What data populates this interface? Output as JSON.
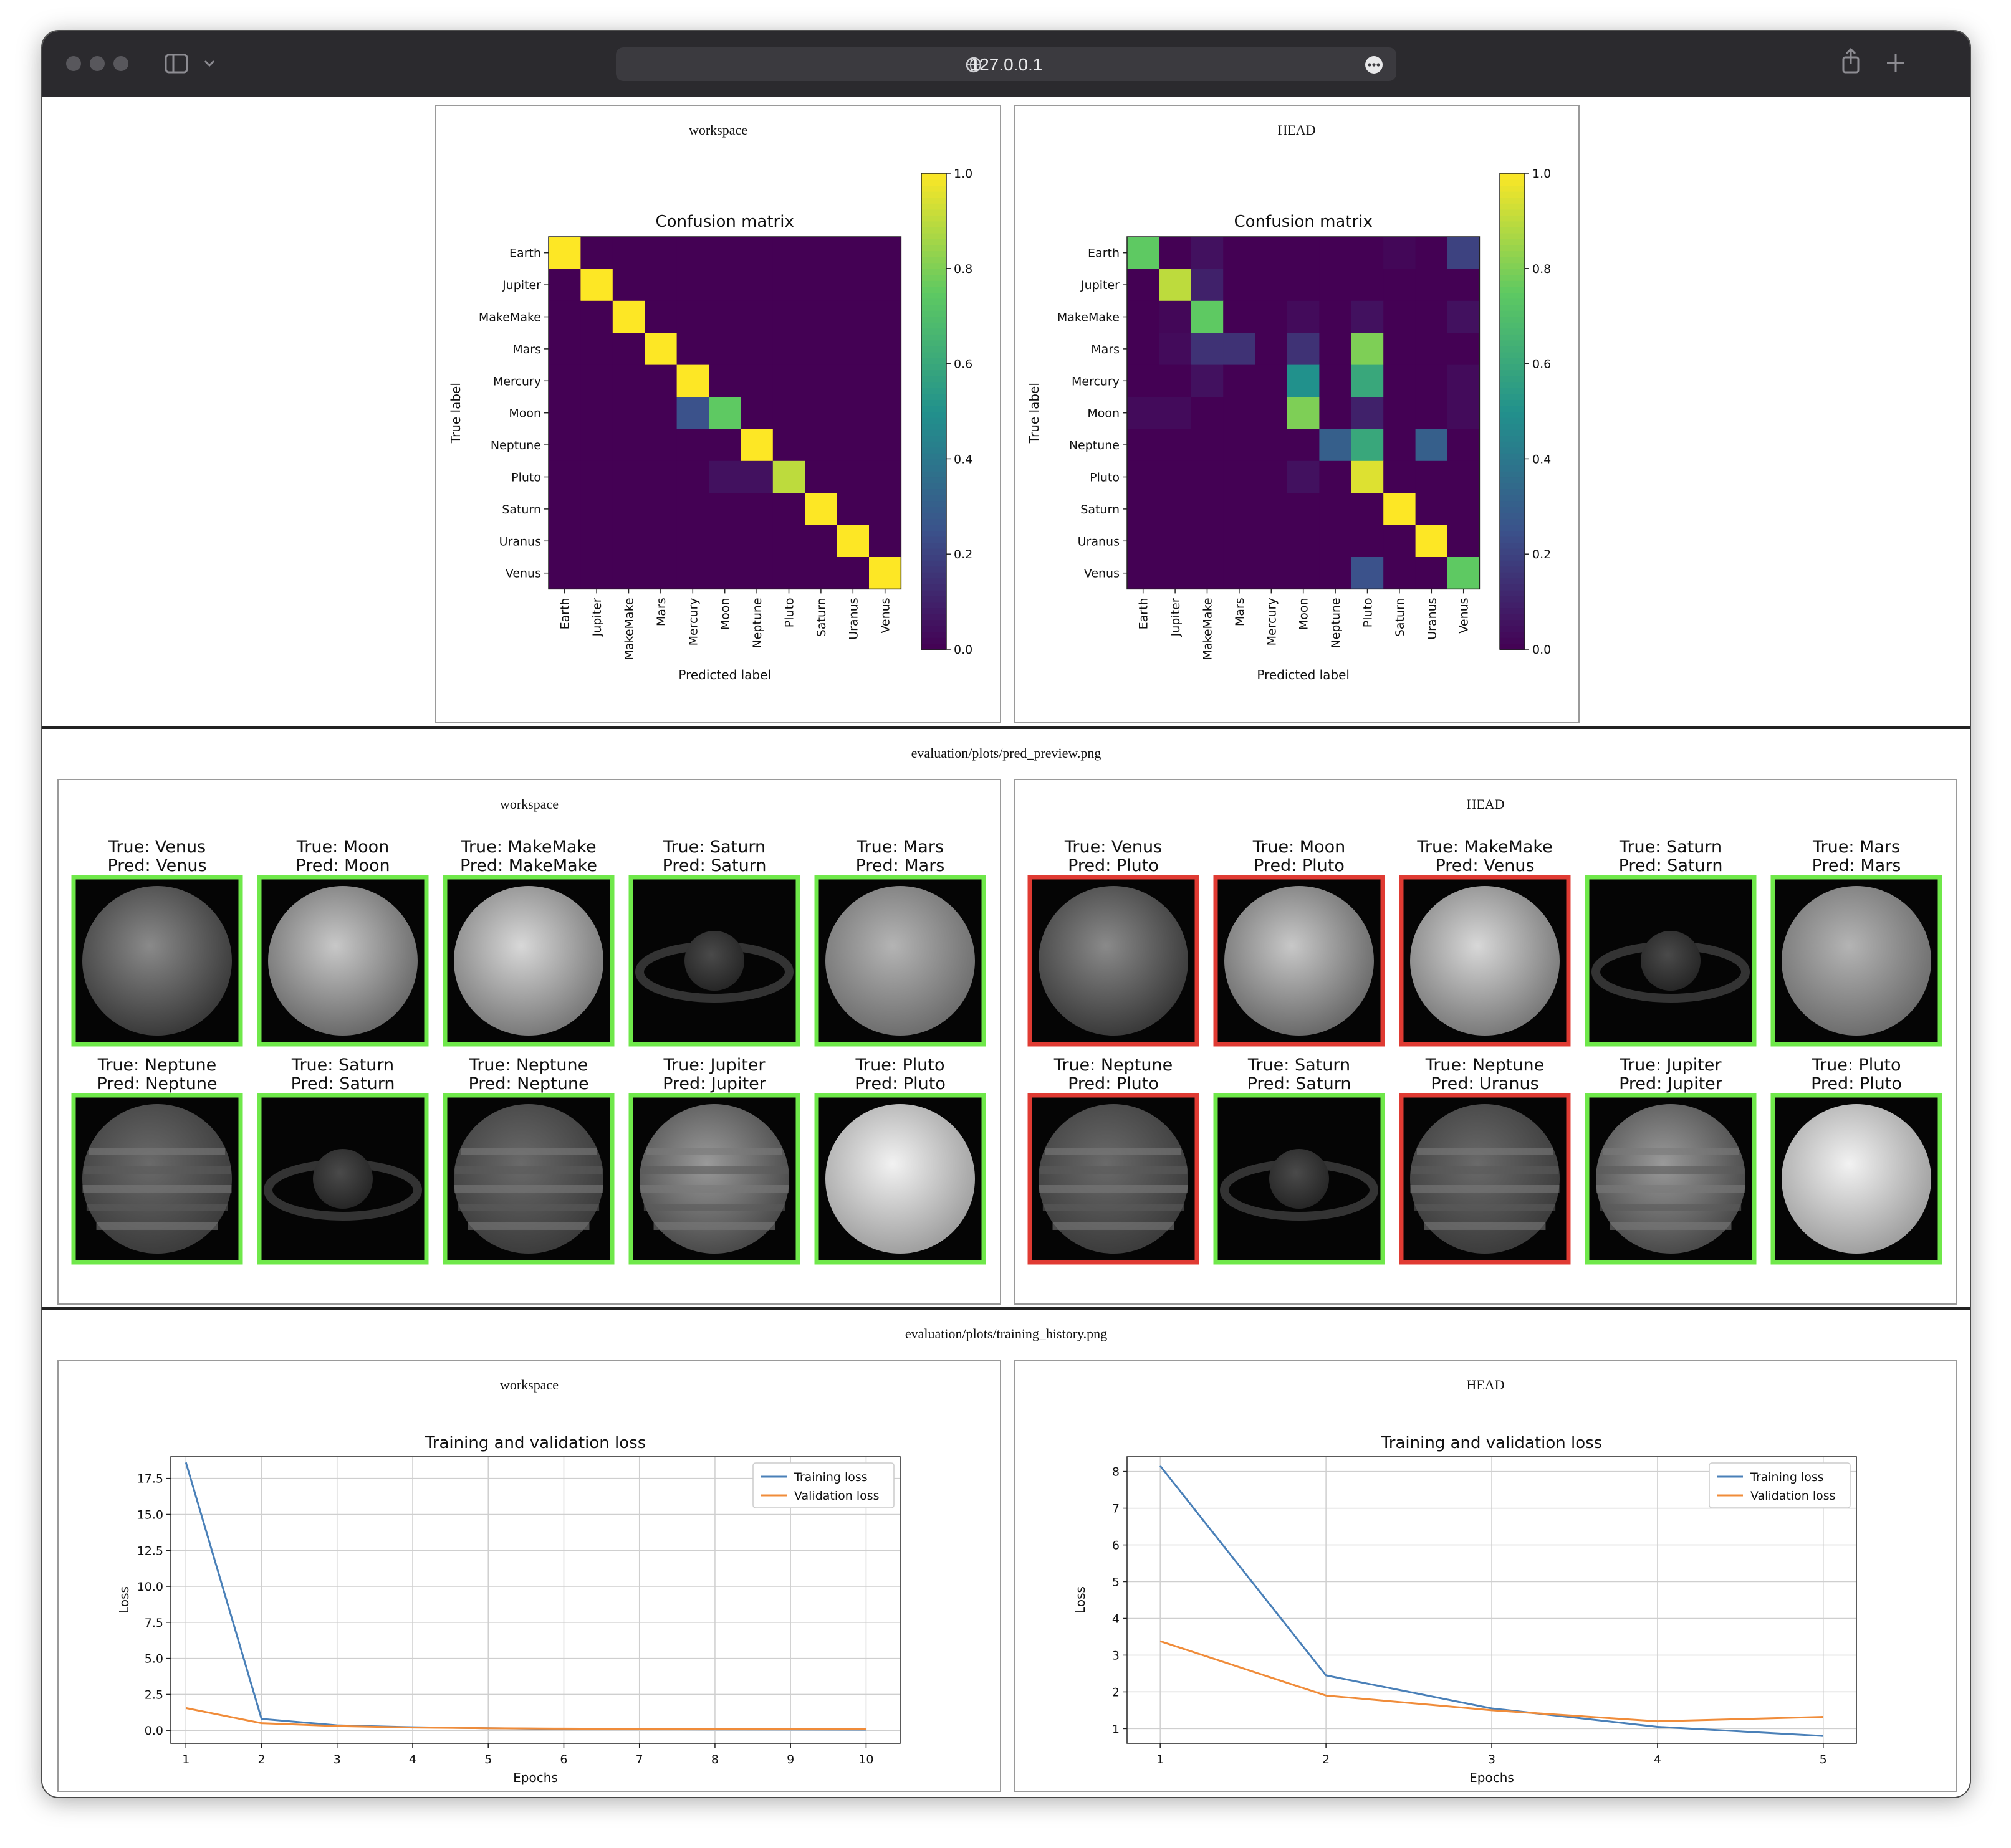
{
  "browser": {
    "url": "127.0.0.1",
    "icons": [
      "sidebar-icon",
      "chevron-down-icon",
      "globe-icon",
      "more-icon",
      "share-icon",
      "plus-icon"
    ]
  },
  "confusion": {
    "panels": [
      {
        "label": "workspace"
      },
      {
        "label": "HEAD"
      }
    ]
  },
  "preview": {
    "path": "evaluation/plots/pred_preview.png",
    "panels": [
      {
        "label": "workspace",
        "items": [
          {
            "true": "True: Venus",
            "pred": "Pred: Venus",
            "correct": true
          },
          {
            "true": "True: Moon",
            "pred": "Pred: Moon",
            "correct": true
          },
          {
            "true": "True: MakeMake",
            "pred": "Pred: MakeMake",
            "correct": true
          },
          {
            "true": "True: Saturn",
            "pred": "Pred: Saturn",
            "correct": true
          },
          {
            "true": "True: Mars",
            "pred": "Pred: Mars",
            "correct": true
          },
          {
            "true": "True: Neptune",
            "pred": "Pred: Neptune",
            "correct": true
          },
          {
            "true": "True: Saturn",
            "pred": "Pred: Saturn",
            "correct": true
          },
          {
            "true": "True: Neptune",
            "pred": "Pred: Neptune",
            "correct": true
          },
          {
            "true": "True: Jupiter",
            "pred": "Pred: Jupiter",
            "correct": true
          },
          {
            "true": "True: Pluto",
            "pred": "Pred: Pluto",
            "correct": true
          }
        ]
      },
      {
        "label": "HEAD",
        "items": [
          {
            "true": "True: Venus",
            "pred": "Pred: Pluto",
            "correct": false
          },
          {
            "true": "True: Moon",
            "pred": "Pred: Pluto",
            "correct": false
          },
          {
            "true": "True: MakeMake",
            "pred": "Pred: Venus",
            "correct": false
          },
          {
            "true": "True: Saturn",
            "pred": "Pred: Saturn",
            "correct": true
          },
          {
            "true": "True: Mars",
            "pred": "Pred: Mars",
            "correct": true
          },
          {
            "true": "True: Neptune",
            "pred": "Pred: Pluto",
            "correct": false
          },
          {
            "true": "True: Saturn",
            "pred": "Pred: Saturn",
            "correct": true
          },
          {
            "true": "True: Neptune",
            "pred": "Pred: Uranus",
            "correct": false
          },
          {
            "true": "True: Jupiter",
            "pred": "Pred: Jupiter",
            "correct": true
          },
          {
            "true": "True: Pluto",
            "pred": "Pred: Pluto",
            "correct": true
          }
        ]
      }
    ],
    "colors": {
      "correct": "#6fe84a",
      "wrong": "#e03b33"
    }
  },
  "history": {
    "path": "evaluation/plots/training_history.png",
    "panels": [
      {
        "label": "workspace"
      },
      {
        "label": "HEAD"
      }
    ]
  },
  "chart_data": [
    {
      "type": "heatmap",
      "title": "Confusion matrix",
      "xlabel": "Predicted label",
      "ylabel": "True label",
      "labels": [
        "Earth",
        "Jupiter",
        "MakeMake",
        "Mars",
        "Mercury",
        "Moon",
        "Neptune",
        "Pluto",
        "Saturn",
        "Uranus",
        "Venus"
      ],
      "colorbar_ticks": [
        "0.0",
        "0.2",
        "0.4",
        "0.6",
        "0.8",
        "1.0"
      ],
      "colorbar_range": [
        0,
        1
      ],
      "colormap": "viridis",
      "matrix": [
        [
          1,
          0,
          0,
          0,
          0,
          0,
          0,
          0,
          0,
          0,
          0
        ],
        [
          0,
          1,
          0,
          0,
          0,
          0,
          0,
          0,
          0,
          0,
          0
        ],
        [
          0,
          0,
          1,
          0,
          0,
          0,
          0,
          0,
          0,
          0,
          0
        ],
        [
          0,
          0,
          0,
          1,
          0,
          0,
          0,
          0,
          0,
          0,
          0
        ],
        [
          0,
          0,
          0,
          0,
          1,
          0,
          0,
          0,
          0,
          0,
          0
        ],
        [
          0,
          0,
          0,
          0,
          0.25,
          0.75,
          0,
          0,
          0,
          0,
          0
        ],
        [
          0,
          0,
          0,
          0,
          0,
          0,
          1,
          0,
          0,
          0,
          0
        ],
        [
          0,
          0,
          0,
          0,
          0,
          0.05,
          0.05,
          0.9,
          0,
          0,
          0
        ],
        [
          0,
          0,
          0,
          0,
          0,
          0,
          0,
          0,
          1,
          0,
          0
        ],
        [
          0,
          0,
          0,
          0,
          0,
          0,
          0,
          0,
          0,
          1,
          0
        ],
        [
          0,
          0,
          0,
          0,
          0,
          0,
          0,
          0,
          0,
          0,
          1
        ]
      ]
    },
    {
      "type": "heatmap",
      "title": "Confusion matrix",
      "xlabel": "Predicted label",
      "ylabel": "True label",
      "labels": [
        "Earth",
        "Jupiter",
        "MakeMake",
        "Mars",
        "Mercury",
        "Moon",
        "Neptune",
        "Pluto",
        "Saturn",
        "Uranus",
        "Venus"
      ],
      "colorbar_ticks": [
        "0.0",
        "0.2",
        "0.4",
        "0.6",
        "0.8",
        "1.0"
      ],
      "colorbar_range": [
        0,
        1
      ],
      "colormap": "viridis",
      "matrix": [
        [
          0.75,
          0,
          0.05,
          0,
          0,
          0,
          0,
          0,
          0.02,
          0,
          0.2
        ],
        [
          0,
          0.9,
          0.1,
          0,
          0,
          0,
          0,
          0,
          0,
          0,
          0
        ],
        [
          0,
          0.02,
          0.75,
          0,
          0,
          0.03,
          0,
          0.05,
          0,
          0,
          0.05
        ],
        [
          0,
          0.03,
          0.15,
          0.15,
          0,
          0.15,
          0,
          0.8,
          0,
          0,
          0
        ],
        [
          0,
          0,
          0.05,
          0,
          0,
          0.5,
          0,
          0.6,
          0,
          0,
          0.03
        ],
        [
          0.03,
          0.03,
          0,
          0,
          0,
          0.8,
          0,
          0.1,
          0,
          0,
          0.03
        ],
        [
          0,
          0,
          0,
          0,
          0,
          0,
          0.3,
          0.6,
          0,
          0.3,
          0
        ],
        [
          0,
          0,
          0,
          0,
          0,
          0.05,
          0,
          0.95,
          0,
          0,
          0
        ],
        [
          0,
          0,
          0,
          0,
          0,
          0,
          0,
          0,
          1,
          0,
          0
        ],
        [
          0,
          0,
          0,
          0,
          0,
          0,
          0,
          0,
          0,
          1,
          0
        ],
        [
          0,
          0,
          0,
          0,
          0,
          0,
          0,
          0.25,
          0,
          0,
          0.75
        ]
      ]
    },
    {
      "type": "line",
      "title": "Training and validation loss",
      "xlabel": "Epochs",
      "ylabel": "Loss",
      "x": [
        1,
        2,
        3,
        4,
        5,
        6,
        7,
        8,
        9,
        10
      ],
      "xticks": [
        "1",
        "2",
        "3",
        "4",
        "5",
        "6",
        "7",
        "8",
        "9",
        "10"
      ],
      "yticks": [
        "0.0",
        "2.5",
        "5.0",
        "7.5",
        "10.0",
        "12.5",
        "15.0",
        "17.5"
      ],
      "ylim": [
        -0.9,
        19.0
      ],
      "xlim": [
        0.8,
        10.45
      ],
      "grid": true,
      "legend": "top-right",
      "series": [
        {
          "name": "Training loss",
          "color": "#4a80b8",
          "values": [
            18.6,
            0.8,
            0.35,
            0.22,
            0.15,
            0.1,
            0.08,
            0.07,
            0.06,
            0.05
          ]
        },
        {
          "name": "Validation loss",
          "color": "#f08c3a",
          "values": [
            1.55,
            0.5,
            0.3,
            0.2,
            0.15,
            0.12,
            0.1,
            0.09,
            0.09,
            0.1
          ]
        }
      ]
    },
    {
      "type": "line",
      "title": "Training and validation loss",
      "xlabel": "Epochs",
      "ylabel": "Loss",
      "x": [
        1,
        2,
        3,
        4,
        5
      ],
      "xticks": [
        "1",
        "2",
        "3",
        "4",
        "5"
      ],
      "yticks": [
        "1",
        "2",
        "3",
        "4",
        "5",
        "6",
        "7",
        "8"
      ],
      "ylim": [
        0.6,
        8.4
      ],
      "xlim": [
        0.8,
        5.2
      ],
      "grid": true,
      "legend": "top-right",
      "series": [
        {
          "name": "Training loss",
          "color": "#4a80b8",
          "values": [
            8.15,
            2.45,
            1.55,
            1.05,
            0.8
          ]
        },
        {
          "name": "Validation loss",
          "color": "#f08c3a",
          "values": [
            3.38,
            1.9,
            1.5,
            1.2,
            1.32
          ]
        }
      ]
    }
  ]
}
